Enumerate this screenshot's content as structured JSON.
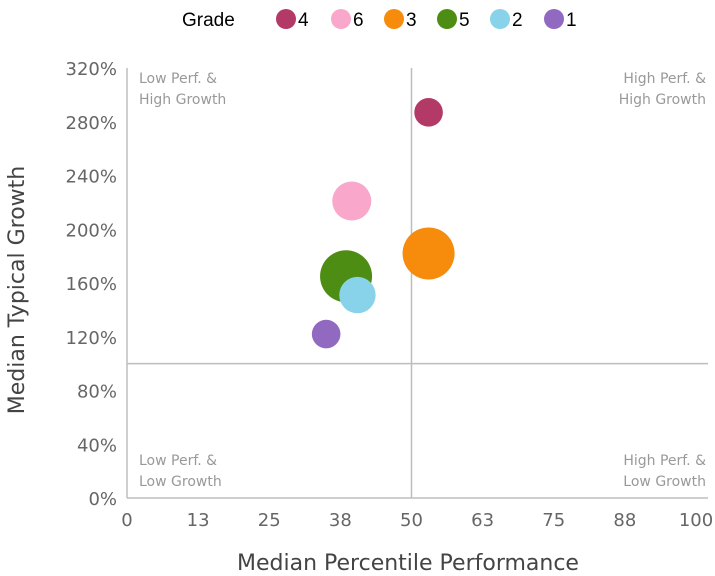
{
  "chart_data": {
    "type": "scatter",
    "xlabel": "Median Percentile Performance",
    "ylabel": "Median Typical Growth",
    "xlim": [
      0,
      100
    ],
    "ylim": [
      0,
      320
    ],
    "x_ticks": [
      "0",
      "13",
      "25",
      "38",
      "50",
      "63",
      "75",
      "88",
      "100"
    ],
    "y_ticks": [
      "0%",
      "40%",
      "80%",
      "120%",
      "160%",
      "200%",
      "240%",
      "280%",
      "320%"
    ],
    "reference_lines": {
      "x": 50,
      "y": 100
    },
    "legend": {
      "title": "Grade",
      "position": "top"
    },
    "quadrant_labels": {
      "top_left": [
        "Low Perf. &",
        "High Growth"
      ],
      "top_right": [
        "High Perf. &",
        "High Growth"
      ],
      "bottom_left": [
        "Low Perf. &",
        "Low Growth"
      ],
      "bottom_right": [
        "High Perf. &",
        "Low Growth"
      ]
    },
    "series": [
      {
        "name": "4",
        "x": 53,
        "y": 287,
        "size": 0.55,
        "color": "#b33a66"
      },
      {
        "name": "6",
        "x": 39.5,
        "y": 221,
        "size": 0.75,
        "color": "#f9a8cc"
      },
      {
        "name": "3",
        "x": 53,
        "y": 182,
        "size": 1.0,
        "color": "#f68b0c"
      },
      {
        "name": "5",
        "x": 38.5,
        "y": 165,
        "size": 1.0,
        "color": "#4e8d13"
      },
      {
        "name": "2",
        "x": 40.5,
        "y": 151,
        "size": 0.7,
        "color": "#88d3ea"
      },
      {
        "name": "1",
        "x": 35,
        "y": 122,
        "size": 0.55,
        "color": "#9169c1"
      }
    ]
  }
}
